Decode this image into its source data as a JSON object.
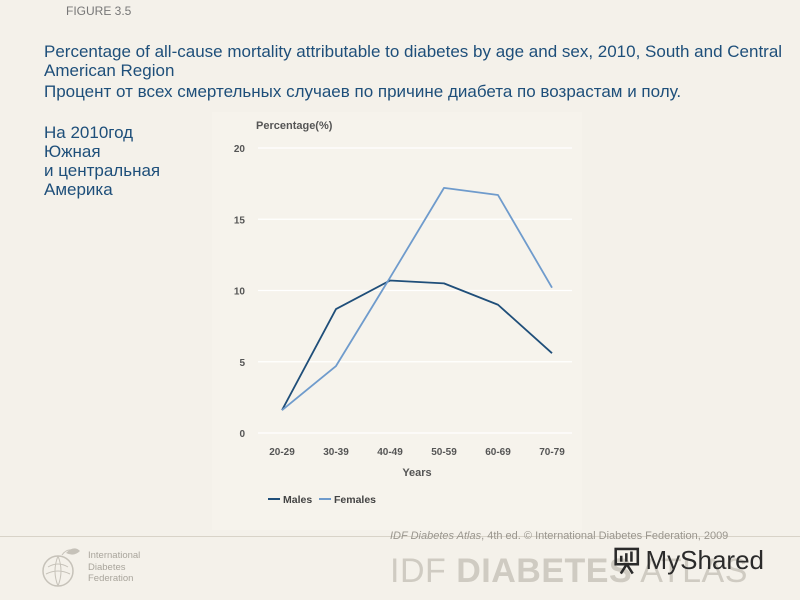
{
  "figure_label": "FIGURE 3.5",
  "title_en": "Percentage of all-cause mortality attributable to diabetes by age and sex, 2010, South and Central American Region",
  "title_ru": "Процент от всех смертельных случаев по причине диабета по возрастам и полу.",
  "region_lines": [
    "На 2010год",
    "Южная",
    "и центральная",
    "Америка"
  ],
  "chart_data": {
    "type": "line",
    "title": "",
    "ylabel": "Percentage(%)",
    "xlabel": "Years",
    "categories": [
      "20-29",
      "30-39",
      "40-49",
      "50-59",
      "60-69",
      "70-79"
    ],
    "ylim": [
      0,
      20
    ],
    "yticks": [
      0,
      5,
      10,
      15,
      20
    ],
    "grid": true,
    "legend_position": "bottom",
    "series": [
      {
        "name": "Males",
        "color": "#1f4e79",
        "values": [
          1.6,
          8.7,
          10.7,
          10.5,
          9.0,
          5.6
        ]
      },
      {
        "name": "Females",
        "color": "#6f9bcc",
        "values": [
          1.6,
          4.7,
          10.9,
          17.2,
          16.7,
          10.2
        ]
      }
    ]
  },
  "footer": {
    "citation_italic": "IDF Diabetes Atlas",
    "citation_rest": ", 4th ed. © International Diabetes Federation, 2009",
    "atlas_prefix": "IDF ",
    "atlas_bold": "DIABETES",
    "atlas_suffix": " ATLAS",
    "org_lines": [
      "International",
      "Diabetes",
      "Federation"
    ],
    "watermark": "MyShared"
  }
}
